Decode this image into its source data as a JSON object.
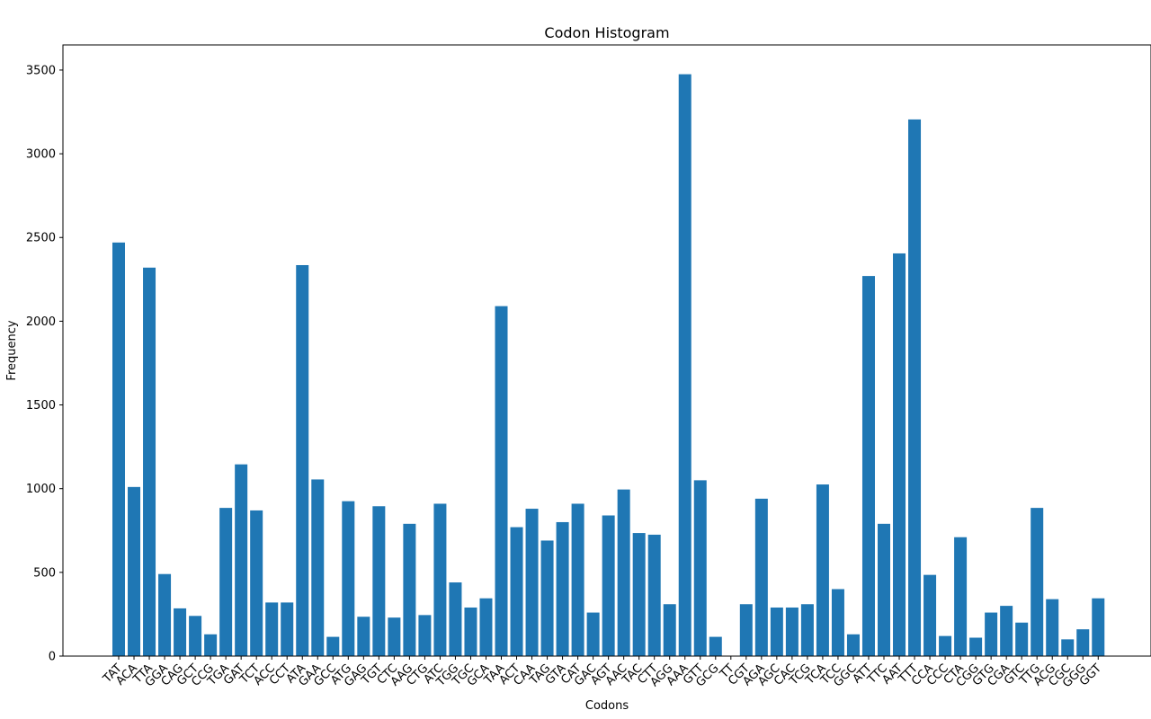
{
  "chart_data": {
    "type": "bar",
    "title": "Codon Histogram",
    "xlabel": "Codons",
    "ylabel": "Frequency",
    "ylim": [
      0,
      3650
    ],
    "yticks": [
      0,
      500,
      1000,
      1500,
      2000,
      2500,
      3000,
      3500
    ],
    "grid": false,
    "bar_color": "#1f77b4",
    "categories": [
      "TAT",
      "ACA",
      "TTA",
      "GGA",
      "CAG",
      "GCT",
      "CCG",
      "TGA",
      "GAT",
      "TCT",
      "ACC",
      "CCT",
      "ATA",
      "GAA",
      "GCC",
      "ATG",
      "GAG",
      "TGT",
      "CTC",
      "AAG",
      "CTG",
      "ATC",
      "TGG",
      "TGC",
      "GCA",
      "TAA",
      "ACT",
      "CAA",
      "TAG",
      "GTA",
      "CAT",
      "GAC",
      "AGT",
      "AAC",
      "TAC",
      "CTT",
      "AGG",
      "AAA",
      "GTT",
      "GCG",
      "TT",
      "CGT",
      "AGA",
      "AGC",
      "CAC",
      "TCG",
      "TCA",
      "TCC",
      "GGC",
      "ATT",
      "TTC",
      "AAT",
      "TTT",
      "CCA",
      "CCC",
      "CTA",
      "CGG",
      "GTG",
      "CGA",
      "GTC",
      "TTG",
      "ACG",
      "CGC",
      "GGG",
      "GGT"
    ],
    "values": [
      2470,
      1010,
      2320,
      490,
      285,
      240,
      130,
      885,
      1145,
      870,
      320,
      320,
      2335,
      1055,
      115,
      925,
      235,
      895,
      230,
      790,
      245,
      910,
      440,
      290,
      345,
      2090,
      770,
      880,
      690,
      800,
      910,
      260,
      840,
      995,
      735,
      725,
      310,
      3475,
      1050,
      115,
      0,
      310,
      940,
      290,
      290,
      310,
      1025,
      400,
      130,
      2270,
      790,
      2405,
      3205,
      485,
      120,
      710,
      110,
      260,
      300,
      200,
      885,
      340,
      100,
      160,
      345
    ]
  }
}
